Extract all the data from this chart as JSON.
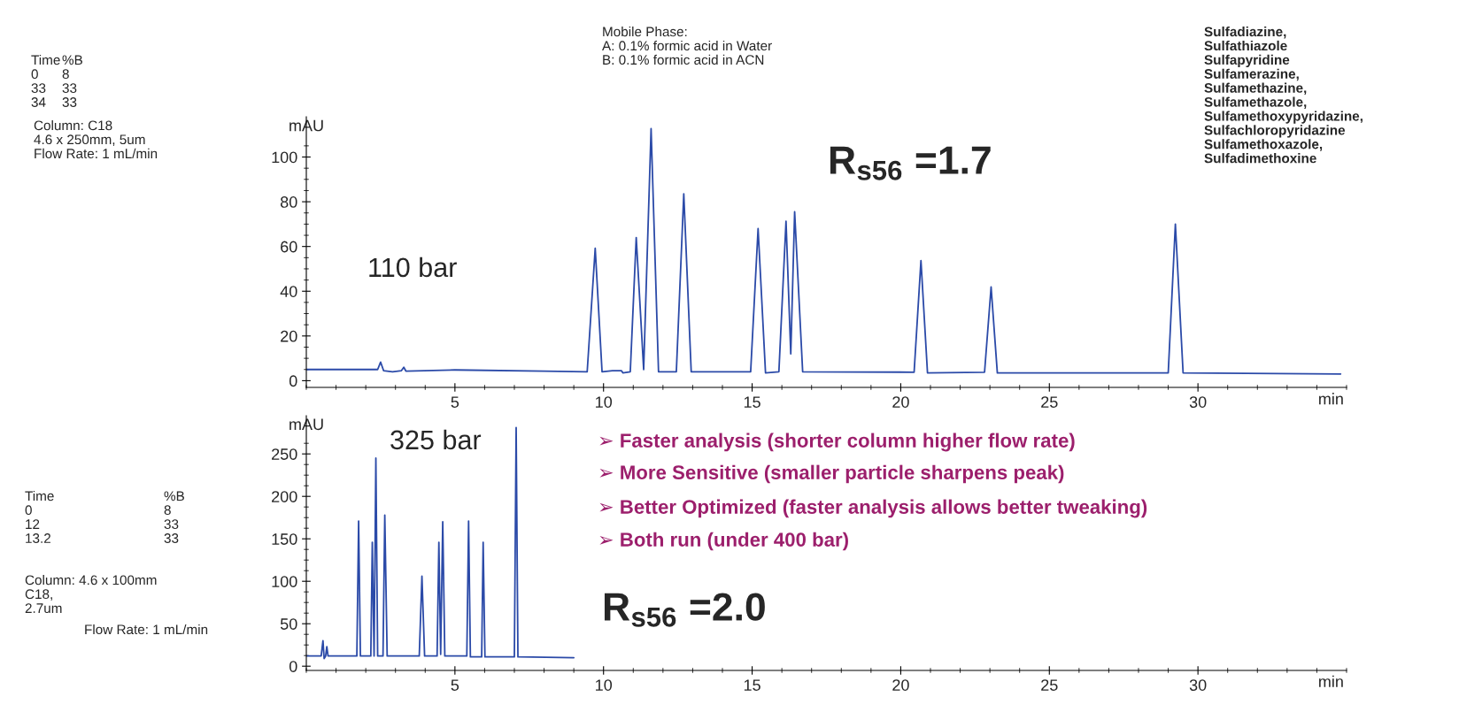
{
  "chart_data": [
    {
      "type": "line",
      "xlabel": "min",
      "ylabel": "mAU",
      "xlim": [
        0,
        35
      ],
      "ylim": [
        -3,
        118
      ],
      "xticks": [
        5,
        10,
        15,
        20,
        25,
        30
      ],
      "yticks": [
        0,
        20,
        40,
        60,
        80,
        100
      ],
      "series": [
        {
          "color": "#2b4aa8",
          "x": [
            0,
            2.4,
            2.5,
            2.6,
            2.9,
            3.2,
            3.28,
            3.35,
            5,
            8,
            9.45,
            9.72,
            9.95,
            10.3,
            10.6,
            10.65,
            10.9,
            11.1,
            11.35,
            11.6,
            11.85,
            12.45,
            12.7,
            12.95,
            14.95,
            15.2,
            15.45,
            15.9,
            16.14,
            16.3,
            16.43,
            16.7,
            20.45,
            20.68,
            20.9,
            22.82,
            23.04,
            23.25,
            29.0,
            29.24,
            29.5,
            34.8
          ],
          "values": [
            5,
            5,
            8.3,
            4.5,
            4,
            4.5,
            6,
            4.3,
            4.8,
            4.3,
            4,
            59.2,
            4,
            4.5,
            4.5,
            3.5,
            4,
            64,
            5,
            112.7,
            4,
            4,
            83.5,
            4,
            4,
            68,
            3.5,
            4,
            71.3,
            12,
            75.5,
            4,
            3.8,
            53.7,
            3.5,
            3.8,
            41.9,
            3.5,
            3.5,
            70,
            3.5,
            3
          ]
        }
      ],
      "annotations": [
        "Time\n0\n33\n34",
        "%B\n8\n33\n33",
        "Column: C18\n4.6 x 250mm, 5um\nFlow Rate: 1 mL/min",
        "Mobile Phase:\nA: 0.1% formic acid in Water\nB: 0.1% formic acid in ACN",
        "Sulfadiazine,\nSulfathiazole\nSulfapyridine\nSulfamerazine,\nSulfamethazine,\nSulfamethazole,\nSulfamethoxypyridazine,\nSulfachloropyridazine\nSulfamethoxazole,\nSulfadimethoxine",
        "R$_{s56}$ =1.7",
        "110 bar"
      ]
    },
    {
      "type": "line",
      "xlabel": "min",
      "ylabel": "mAU",
      "xlim": [
        0,
        35
      ],
      "ylim": [
        -5,
        295
      ],
      "xticks": [
        5,
        10,
        15,
        20,
        25,
        30
      ],
      "yticks": [
        0,
        50,
        100,
        150,
        200,
        250
      ],
      "series": [
        {
          "color": "#2b4aa8",
          "x": [
            0,
            0.5,
            0.56,
            0.6,
            0.65,
            0.69,
            0.73,
            1.7,
            1.76,
            1.82,
            2.17,
            2.22,
            2.28,
            2.34,
            2.4,
            2.58,
            2.64,
            2.72,
            3.8,
            3.89,
            3.98,
            4.4,
            4.46,
            4.52,
            4.59,
            4.66,
            5.4,
            5.46,
            5.52,
            5.9,
            5.95,
            6.01,
            7.0,
            7.06,
            7.12,
            9.0
          ],
          "values": [
            12,
            12,
            30,
            9,
            12,
            23,
            12,
            12,
            171,
            12,
            12,
            146,
            12,
            245,
            12,
            12,
            178,
            12,
            12,
            106,
            12,
            12,
            146,
            14,
            170,
            12,
            12,
            171,
            11,
            11,
            146,
            11,
            11,
            281,
            11,
            10
          ]
        }
      ],
      "annotations": [
        "Time\n0\n12\n13.2",
        "%B\n8\n33\n33",
        "Column: 4.6 x 100mm\nC18,\n2.7um",
        "Flow Rate: 1 mL/min",
        "325 bar",
        "➢ Faster analysis (shorter column higher flow rate)",
        "➢ More Sensitive (smaller particle sharpens peak)",
        "➢ Better Optimized (faster analysis allows better tweaking)",
        "➢ Both run (under 400 bar)",
        "R$_{s56}$ =2.0"
      ]
    }
  ]
}
